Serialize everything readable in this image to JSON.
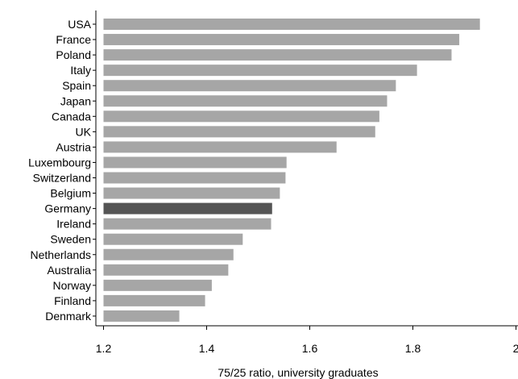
{
  "chart_data": {
    "type": "bar",
    "orientation": "horizontal",
    "categories": [
      "USA",
      "France",
      "Poland",
      "Italy",
      "Spain",
      "Japan",
      "Canada",
      "UK",
      "Austria",
      "Luxembourg",
      "Switzerland",
      "Belgium",
      "Germany",
      "Ireland",
      "Sweden",
      "Netherlands",
      "Australia",
      "Norway",
      "Finland",
      "Denmark"
    ],
    "values": [
      1.93,
      1.89,
      1.875,
      1.808,
      1.767,
      1.75,
      1.735,
      1.727,
      1.652,
      1.555,
      1.553,
      1.542,
      1.527,
      1.525,
      1.47,
      1.452,
      1.442,
      1.41,
      1.397,
      1.347
    ],
    "highlight": "Germany",
    "xlabel": "75/25 ratio, university graduates",
    "ylabel": "",
    "title": "",
    "xlim": [
      1.2,
      2.0
    ],
    "xticks": [
      "1.2",
      "1.4",
      "1.6",
      "1.8",
      "2"
    ],
    "grid": false,
    "colors": {
      "bar": "#a6a6a6",
      "highlight": "#555555",
      "axis": "#000000"
    }
  }
}
